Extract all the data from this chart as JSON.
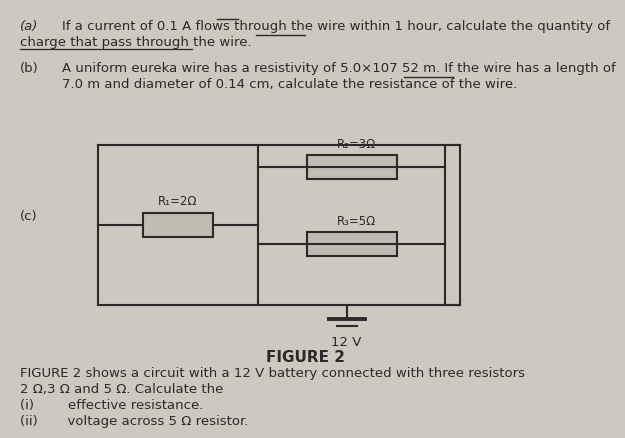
{
  "bg_color": "#cdc8c0",
  "wire_color": "#2a2a2a",
  "resistor_fill": "#c0bbb3",
  "resistor_edge": "#2a2a2a",
  "label_a": "(a)",
  "text_a1": "If a current of 0.1 A flows through the wire within 1 hour, calculate the quantity of",
  "text_a2": "charge that pass through the wire.",
  "label_b": "(b)",
  "text_b1": "A uniform eureka wire has a resistivity of 5.0×107 52 m. If the wire has a length of",
  "text_b2": "7.0 m and diameter of 0.14 cm, calculate the resistance of the wire.",
  "label_c": "(c)",
  "R1_label": "R₁=2Ω",
  "R2_label": "R₂=3Ω",
  "R3_label": "R₃=5Ω",
  "battery_label": "12 V",
  "figure_label": "FIGURE 2",
  "caption_line1": "FIGURE 2 shows a circuit with a 12 V battery connected with three resistors",
  "caption_line2": "2 Ω,3 Ω and 5 Ω. Calculate the",
  "item_i": "(i)        effective resistance.",
  "item_ii": "(ii)       voltage across 5 Ω resistor."
}
